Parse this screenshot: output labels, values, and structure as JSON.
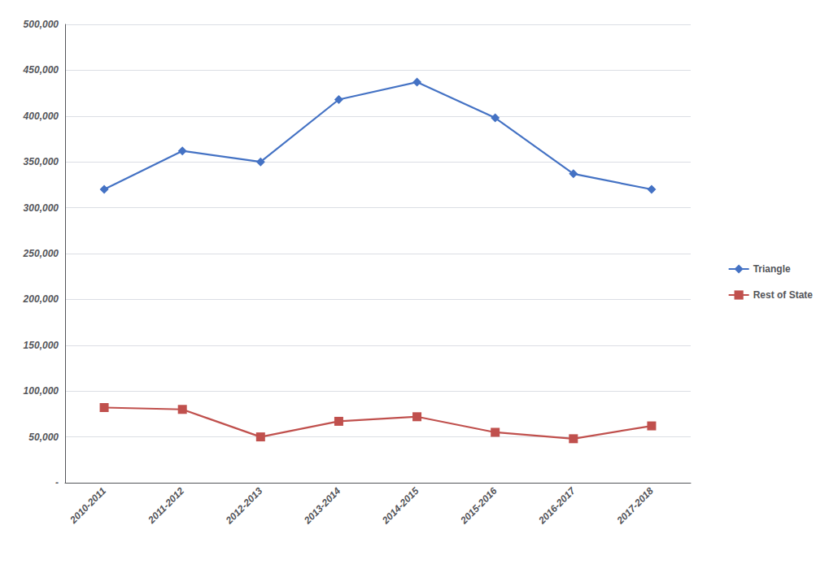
{
  "chart_data": {
    "type": "line",
    "categories": [
      "2010-2011",
      "2011-2012",
      "2012-2013",
      "2013-2014",
      "2014-2015",
      "2015-2016",
      "2016-2017",
      "2017-2018"
    ],
    "series": [
      {
        "name": "Triangle",
        "color": "#4472C4",
        "marker": "diamond",
        "values": [
          320000,
          362000,
          350000,
          418000,
          437000,
          398000,
          337000,
          320000
        ]
      },
      {
        "name": "Rest of State",
        "color": "#C0504D",
        "marker": "square",
        "values": [
          82000,
          80000,
          50000,
          67000,
          72000,
          55000,
          48000,
          62000
        ]
      }
    ],
    "ylim": [
      0,
      500000
    ],
    "yticks": [
      {
        "value": 0,
        "label": "-"
      },
      {
        "value": 50000,
        "label": "50,000"
      },
      {
        "value": 100000,
        "label": "100,000"
      },
      {
        "value": 150000,
        "label": "150,000"
      },
      {
        "value": 200000,
        "label": "200,000"
      },
      {
        "value": 250000,
        "label": "250,000"
      },
      {
        "value": 300000,
        "label": "300,000"
      },
      {
        "value": 350000,
        "label": "350,000"
      },
      {
        "value": 400000,
        "label": "400,000"
      },
      {
        "value": 450000,
        "label": "450,000"
      },
      {
        "value": 500000,
        "label": "500,000"
      }
    ],
    "grid": true,
    "legend": "right"
  }
}
